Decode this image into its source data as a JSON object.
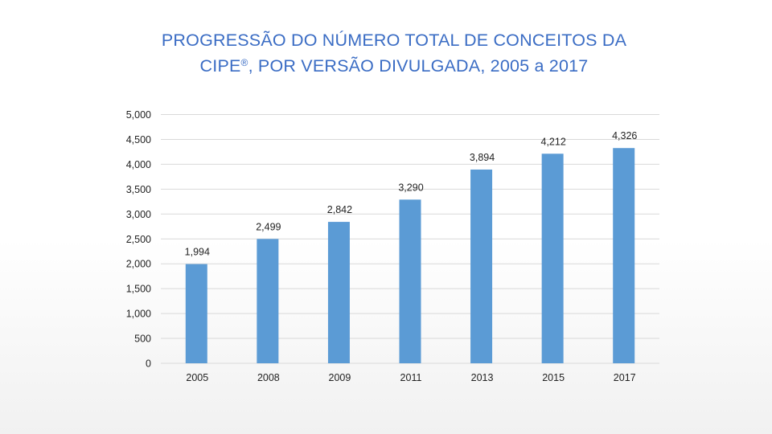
{
  "title": {
    "line1": "PROGRESSÃO DO NÚMERO TOTAL DE CONCEITOS DA",
    "line2_pre": "CIPE",
    "line2_sup": "®",
    "line2_post": ", POR VERSÃO DIVULGADA, 2005 a 2017"
  },
  "chart_data": {
    "type": "bar",
    "title": "PROGRESSÃO DO NÚMERO TOTAL DE CONCEITOS DA CIPE®, POR VERSÃO DIVULGADA, 2005 a 2017",
    "categories": [
      "2005",
      "2008",
      "2009",
      "2011",
      "2013",
      "2015",
      "2017"
    ],
    "values": [
      1994,
      2499,
      2842,
      3290,
      3894,
      4212,
      4326
    ],
    "data_labels": [
      "1,994",
      "2,499",
      "2,842",
      "3,290",
      "3,894",
      "4,212",
      "4,326"
    ],
    "ylim": [
      0,
      5000
    ],
    "yticks": [
      0,
      500,
      1000,
      1500,
      2000,
      2500,
      3000,
      3500,
      4000,
      4500,
      5000
    ],
    "ytick_labels": [
      "0",
      "500",
      "1,000",
      "1,500",
      "2,000",
      "2,500",
      "3,000",
      "3,500",
      "4,000",
      "4,500",
      "5,000"
    ],
    "xlabel": "",
    "ylabel": "",
    "grid": true,
    "bar_color": "#5b9bd5"
  }
}
